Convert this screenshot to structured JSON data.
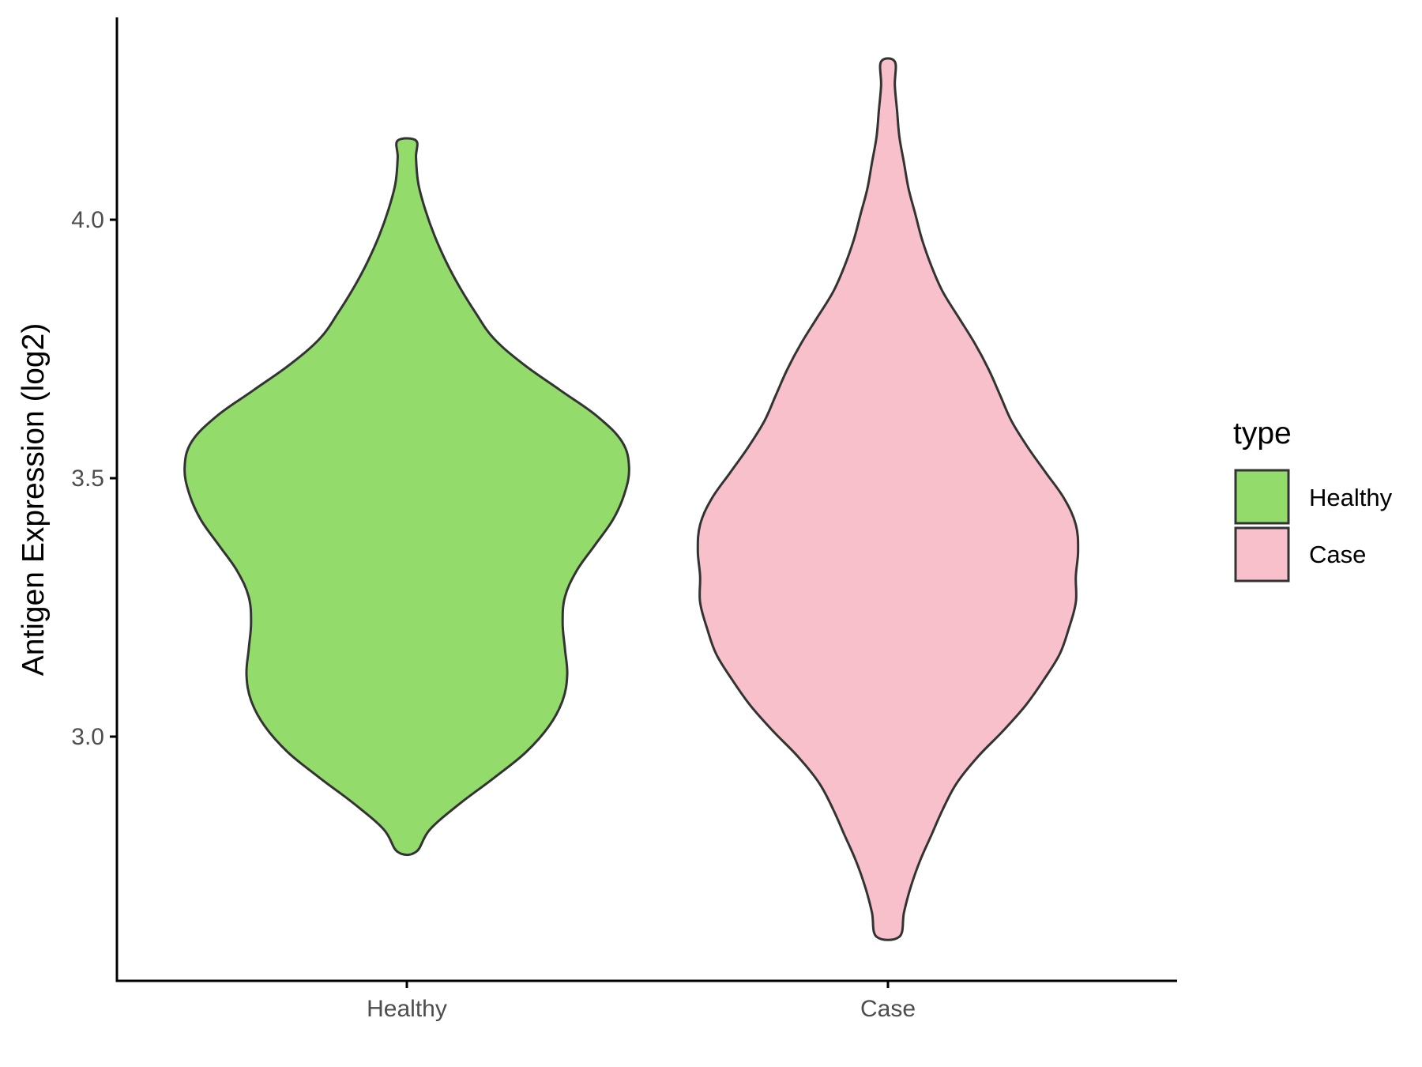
{
  "chart_data": {
    "type": "violin",
    "title": "",
    "xlabel": "",
    "ylabel": "Antigen Expression (log2)",
    "categories": [
      "Healthy",
      "Case"
    ],
    "yticks": [
      "3.0",
      "3.5",
      "4.0"
    ],
    "ylim": [
      2.57,
      4.38
    ],
    "grid": false,
    "legend": {
      "title": "type",
      "position": "right",
      "entries": [
        {
          "label": "Healthy",
          "color": "#93dc6c"
        },
        {
          "label": "Case",
          "color": "#f7c0cb"
        }
      ]
    },
    "series": [
      {
        "category": "Healthy",
        "color": "#93dc6c",
        "min": 2.777,
        "max": 4.153,
        "density_profile": [
          [
            2.777,
            0.04
          ],
          [
            2.82,
            0.1
          ],
          [
            2.87,
            0.23
          ],
          [
            2.92,
            0.38
          ],
          [
            2.97,
            0.52
          ],
          [
            3.02,
            0.62
          ],
          [
            3.07,
            0.68
          ],
          [
            3.12,
            0.7
          ],
          [
            3.17,
            0.69
          ],
          [
            3.22,
            0.68
          ],
          [
            3.27,
            0.69
          ],
          [
            3.32,
            0.74
          ],
          [
            3.37,
            0.82
          ],
          [
            3.42,
            0.9
          ],
          [
            3.47,
            0.95
          ],
          [
            3.52,
            0.97
          ],
          [
            3.57,
            0.94
          ],
          [
            3.62,
            0.83
          ],
          [
            3.67,
            0.67
          ],
          [
            3.72,
            0.51
          ],
          [
            3.77,
            0.38
          ],
          [
            3.82,
            0.3
          ],
          [
            3.87,
            0.23
          ],
          [
            3.92,
            0.17
          ],
          [
            3.97,
            0.12
          ],
          [
            4.02,
            0.08
          ],
          [
            4.07,
            0.05
          ],
          [
            4.12,
            0.04
          ],
          [
            4.153,
            0.04
          ]
        ]
      },
      {
        "category": "Case",
        "color": "#f7c0cb",
        "min": 2.613,
        "max": 4.306,
        "density_profile": [
          [
            2.613,
            0.05
          ],
          [
            2.66,
            0.07
          ],
          [
            2.71,
            0.1
          ],
          [
            2.76,
            0.14
          ],
          [
            2.81,
            0.19
          ],
          [
            2.86,
            0.24
          ],
          [
            2.91,
            0.3
          ],
          [
            2.96,
            0.39
          ],
          [
            3.01,
            0.5
          ],
          [
            3.06,
            0.6
          ],
          [
            3.11,
            0.68
          ],
          [
            3.16,
            0.75
          ],
          [
            3.21,
            0.79
          ],
          [
            3.26,
            0.82
          ],
          [
            3.31,
            0.82
          ],
          [
            3.36,
            0.83
          ],
          [
            3.41,
            0.82
          ],
          [
            3.46,
            0.77
          ],
          [
            3.51,
            0.69
          ],
          [
            3.56,
            0.61
          ],
          [
            3.61,
            0.54
          ],
          [
            3.66,
            0.49
          ],
          [
            3.71,
            0.44
          ],
          [
            3.76,
            0.38
          ],
          [
            3.81,
            0.31
          ],
          [
            3.86,
            0.24
          ],
          [
            3.91,
            0.19
          ],
          [
            3.96,
            0.15
          ],
          [
            4.01,
            0.12
          ],
          [
            4.06,
            0.09
          ],
          [
            4.11,
            0.07
          ],
          [
            4.16,
            0.05
          ],
          [
            4.21,
            0.04
          ],
          [
            4.26,
            0.03
          ],
          [
            4.306,
            0.03
          ]
        ]
      }
    ]
  }
}
